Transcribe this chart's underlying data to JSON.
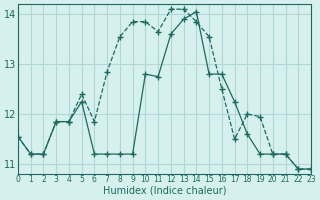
{
  "xlabel": "Humidex (Indice chaleur)",
  "ylabel": "",
  "background_color": "#d6f0ee",
  "grid_color": "#b0d8d4",
  "line_color": "#1a6b5e",
  "xlim": [
    0,
    23
  ],
  "ylim": [
    10.8,
    14.2
  ],
  "xticks": [
    0,
    1,
    2,
    3,
    4,
    5,
    6,
    7,
    8,
    9,
    10,
    11,
    12,
    13,
    14,
    15,
    16,
    17,
    18,
    19,
    20,
    21,
    22,
    23
  ],
  "yticks": [
    11,
    12,
    13,
    14
  ],
  "curve1_x": [
    0,
    1,
    2,
    3,
    4,
    5,
    6,
    7,
    8,
    9,
    10,
    11,
    12,
    13,
    14,
    15,
    16,
    17,
    18,
    19,
    20,
    21,
    22,
    23
  ],
  "curve1_y": [
    11.55,
    11.2,
    11.2,
    11.85,
    11.85,
    12.25,
    11.2,
    11.2,
    11.2,
    11.2,
    12.8,
    12.75,
    13.6,
    13.9,
    14.05,
    12.8,
    12.8,
    12.25,
    11.6,
    11.2,
    11.2,
    11.2,
    10.9,
    10.9
  ],
  "curve2_x": [
    0,
    1,
    2,
    3,
    4,
    5,
    6,
    7,
    8,
    9,
    10,
    11,
    12,
    13,
    14,
    15,
    16,
    17,
    18,
    19,
    20,
    21,
    22,
    23
  ],
  "curve2_y": [
    11.55,
    11.2,
    11.2,
    11.85,
    11.85,
    12.4,
    11.85,
    12.85,
    13.55,
    13.85,
    13.85,
    13.65,
    14.1,
    14.1,
    13.85,
    13.55,
    12.5,
    11.5,
    12.0,
    11.95,
    11.2,
    11.2,
    10.9,
    10.9
  ]
}
